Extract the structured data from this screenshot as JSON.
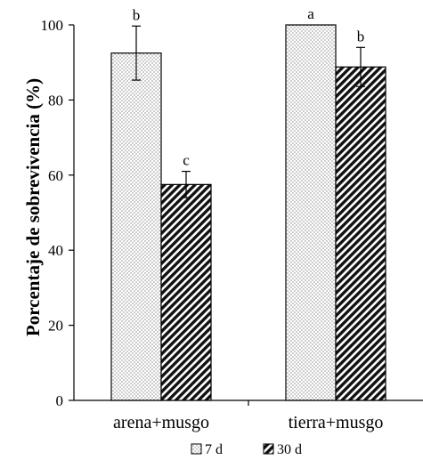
{
  "chart_data": {
    "type": "bar",
    "title": "",
    "xlabel": "",
    "ylabel": "Porcentaje de sobrevivencia (%)",
    "ylim": [
      0,
      100
    ],
    "yticks": [
      0,
      20,
      40,
      60,
      80,
      100
    ],
    "categories": [
      "arena+musgo",
      "tierra+musgo"
    ],
    "series": [
      {
        "name": "7 d",
        "pattern": "dots",
        "values": [
          92.5,
          100
        ],
        "errors": [
          7.2,
          0
        ],
        "letters": [
          "b",
          "a"
        ]
      },
      {
        "name": "30 d",
        "pattern": "diagonal-hatch",
        "values": [
          57.5,
          88.8
        ],
        "errors": [
          3.5,
          5.2
        ],
        "letters": [
          "c",
          "b"
        ]
      }
    ],
    "legend_position": "bottom",
    "grid": false
  }
}
